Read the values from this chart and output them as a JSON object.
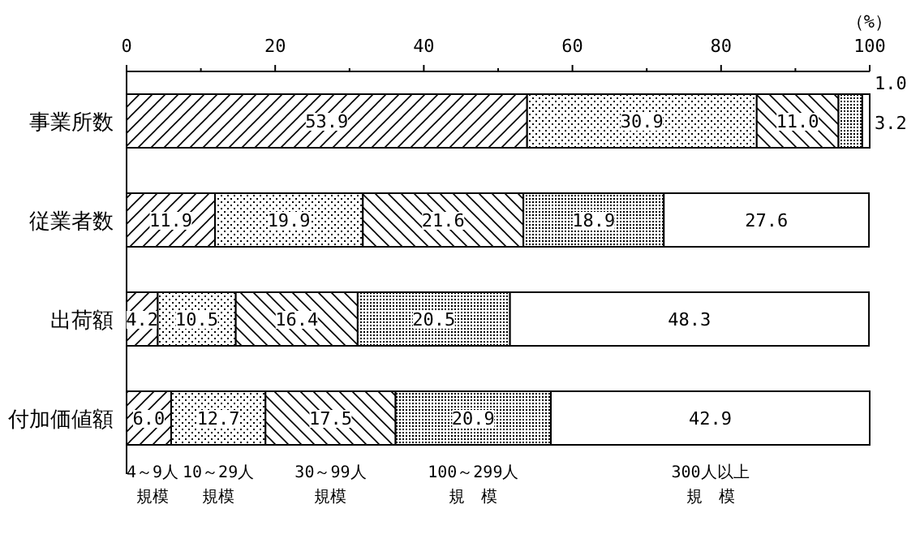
{
  "chart_data": {
    "type": "bar",
    "orientation": "horizontal",
    "stacked": true,
    "legend": "bottom",
    "xlabel": "（%）",
    "categories": [
      "事業所数",
      "従業者数",
      "出荷額",
      "付加価値額"
    ],
    "xlim": [
      0,
      100
    ],
    "xticks": [
      0,
      20,
      40,
      60,
      80,
      100
    ],
    "series": [
      {
        "name": "4～9人規模",
        "color": "#000000",
        "values": [
          53.9,
          11.9,
          4.2,
          6.0
        ],
        "value_labels": [
          "53.9",
          "11.9",
          "4.2",
          "6.0"
        ]
      },
      {
        "name": "10～29人規模",
        "color": "#000000",
        "values": [
          30.9,
          19.9,
          10.5,
          12.7
        ],
        "value_labels": [
          "30.9",
          "19.9",
          "10.5",
          "12.7"
        ]
      },
      {
        "name": "30～99人規模",
        "color": "#000000",
        "values": [
          11.0,
          21.6,
          16.4,
          17.5
        ],
        "value_labels": [
          "11.0",
          "21.6",
          "16.4",
          "17.5"
        ]
      },
      {
        "name": "100～299人規　模",
        "color": "#000000",
        "values": [
          3.2,
          18.9,
          20.5,
          20.9
        ],
        "value_labels": [
          "3.2",
          "18.9",
          "20.5",
          "20.9"
        ]
      },
      {
        "name": "300人以上規　模",
        "color": "#ffffff",
        "values": [
          1.0,
          27.6,
          48.3,
          42.9
        ],
        "value_labels": [
          "1.0",
          "27.6",
          "48.3",
          "42.9"
        ]
      }
    ]
  }
}
